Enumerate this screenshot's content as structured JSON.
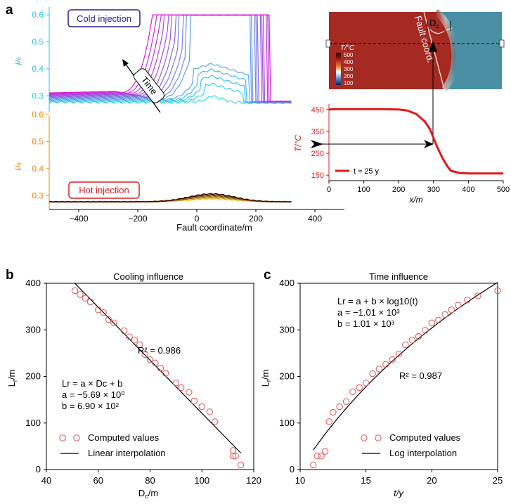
{
  "panel_labels": [
    "a",
    "b",
    "c"
  ],
  "colors": {
    "cold_box": "#22228c",
    "hot_box": "#d42020",
    "cold_axis": "#29c4e3",
    "hot_axis": "#f08a10",
    "t_axis": "#d42020",
    "marker": "#e05050"
  },
  "panel_a": {
    "cold_label": "Cold injection",
    "hot_label": "Hot injection",
    "time_label": "Time",
    "mu_label": "μ",
    "mu_sub": "fr",
    "xlabel": "Fault coordinate/m",
    "x_ticks": [
      "-400",
      "-200",
      "0",
      "200",
      "400"
    ],
    "cold_ticks": [
      "0.3",
      "0.4",
      "0.5",
      "0.6"
    ],
    "hot_ticks": [
      "0.3",
      "0.4",
      "0.5",
      "0.6"
    ],
    "inset_map": {
      "dc_label": "D",
      "dc_sub": "c",
      "fault_label": "Fault coord.",
      "colorbar_title": "T/°C",
      "colorbar_ticks": [
        "500",
        "400",
        "300",
        "200",
        "100"
      ]
    },
    "inset_profile": {
      "ylabel": "T/°C",
      "xlabel": "x/m",
      "y_ticks": [
        "150",
        "250",
        "350",
        "450"
      ],
      "x_ticks": [
        "0",
        "100",
        "200",
        "300",
        "400",
        "500"
      ],
      "legend": "t ≈ 25 y"
    }
  },
  "panel_b": {
    "title": "Cooling influence",
    "ylabel": "L",
    "ylabel_sub": "r",
    "ylabel_unit": "/m",
    "xlabel": "D",
    "xlabel_sub": "c",
    "xlabel_unit": "/m",
    "x_ticks": [
      "40",
      "60",
      "80",
      "100",
      "120"
    ],
    "y_ticks": [
      "0",
      "100",
      "200",
      "300",
      "400"
    ],
    "r2": "R² = 0.986",
    "eq1": "Lr = a × Dc + b",
    "eq2": "a = −5.69 × 10⁰",
    "eq3": "b = 6.90 × 10²",
    "legend_points": "Computed values",
    "legend_line": "Linear interpolation"
  },
  "panel_c": {
    "title": "Time influence",
    "ylabel": "L",
    "ylabel_sub": "r",
    "ylabel_unit": "/m",
    "xlabel": "t/y",
    "x_ticks": [
      "10",
      "15",
      "20",
      "25"
    ],
    "y_ticks": [
      "0",
      "100",
      "200",
      "300",
      "400"
    ],
    "r2": "R² = 0.987",
    "eq1": "Lr = a + b × log10(t)",
    "eq2": "a = −1.01 × 10³",
    "eq3": "b = 1.01 × 10³",
    "legend_points": "Computed values",
    "legend_line": "Log interpolation"
  },
  "chart_data": [
    {
      "type": "line",
      "id": "cold_friction",
      "xlim": [
        -500,
        500
      ],
      "ylim": [
        0.25,
        0.63
      ],
      "series_count": 16,
      "saturation_value": 0.6,
      "baseline_value": 0.28
    },
    {
      "type": "line",
      "id": "hot_friction",
      "xlim": [
        -500,
        500
      ],
      "ylim": [
        0.25,
        0.63
      ],
      "series_count": 8,
      "peak_value": 0.31,
      "baseline_value": 0.28
    },
    {
      "type": "line",
      "id": "temperature_profile",
      "x": [
        0,
        25,
        50,
        100,
        150,
        200,
        225,
        250,
        275,
        290,
        300,
        310,
        325,
        340,
        350,
        375,
        400,
        450,
        500
      ],
      "y": [
        450,
        452,
        452,
        452,
        452,
        450,
        445,
        430,
        395,
        360,
        320,
        280,
        230,
        190,
        170,
        160,
        158,
        158,
        158
      ],
      "xlim": [
        0,
        500
      ],
      "ylim": [
        125,
        475
      ]
    },
    {
      "type": "scatter",
      "id": "cooling_influence",
      "points": [
        [
          51,
          384
        ],
        [
          53,
          376
        ],
        [
          55,
          368
        ],
        [
          57,
          360
        ],
        [
          60,
          343
        ],
        [
          62,
          337
        ],
        [
          64,
          322
        ],
        [
          66,
          315
        ],
        [
          70,
          298
        ],
        [
          72,
          285
        ],
        [
          74,
          278
        ],
        [
          76,
          268
        ],
        [
          78,
          247
        ],
        [
          80,
          236
        ],
        [
          82,
          229
        ],
        [
          84,
          218
        ],
        [
          86,
          207
        ],
        [
          90,
          186
        ],
        [
          92,
          176
        ],
        [
          95,
          166
        ],
        [
          97,
          147
        ],
        [
          100,
          135
        ],
        [
          103,
          124
        ],
        [
          105,
          103
        ],
        [
          112,
          41
        ],
        [
          112,
          29
        ],
        [
          113,
          29
        ],
        [
          115,
          10
        ]
      ],
      "fit": {
        "a": -5.69,
        "b": 690,
        "x_range": [
          51,
          115
        ]
      },
      "xlim": [
        40,
        120
      ],
      "ylim": [
        0,
        400
      ]
    },
    {
      "type": "scatter",
      "id": "time_influence",
      "points": [
        [
          11,
          10
        ],
        [
          11.3,
          29
        ],
        [
          11.6,
          29
        ],
        [
          11.9,
          39
        ],
        [
          12.2,
          103
        ],
        [
          12.5,
          123
        ],
        [
          13,
          135
        ],
        [
          13.5,
          146
        ],
        [
          14,
          167
        ],
        [
          14.5,
          176
        ],
        [
          15,
          186
        ],
        [
          15.5,
          206
        ],
        [
          16,
          216
        ],
        [
          16.5,
          226
        ],
        [
          17,
          236
        ],
        [
          17.5,
          248
        ],
        [
          18,
          268
        ],
        [
          18.5,
          278
        ],
        [
          19,
          286
        ],
        [
          19.5,
          299
        ],
        [
          20,
          315
        ],
        [
          20.5,
          321
        ],
        [
          21,
          333
        ],
        [
          21.5,
          343
        ],
        [
          22,
          353
        ],
        [
          22.7,
          364
        ],
        [
          23.5,
          373
        ],
        [
          25,
          384
        ]
      ],
      "fit": {
        "a": -1010,
        "b": 1010,
        "x_range": [
          11,
          25
        ]
      },
      "xlim": [
        10,
        25
      ],
      "ylim": [
        0,
        400
      ]
    }
  ]
}
